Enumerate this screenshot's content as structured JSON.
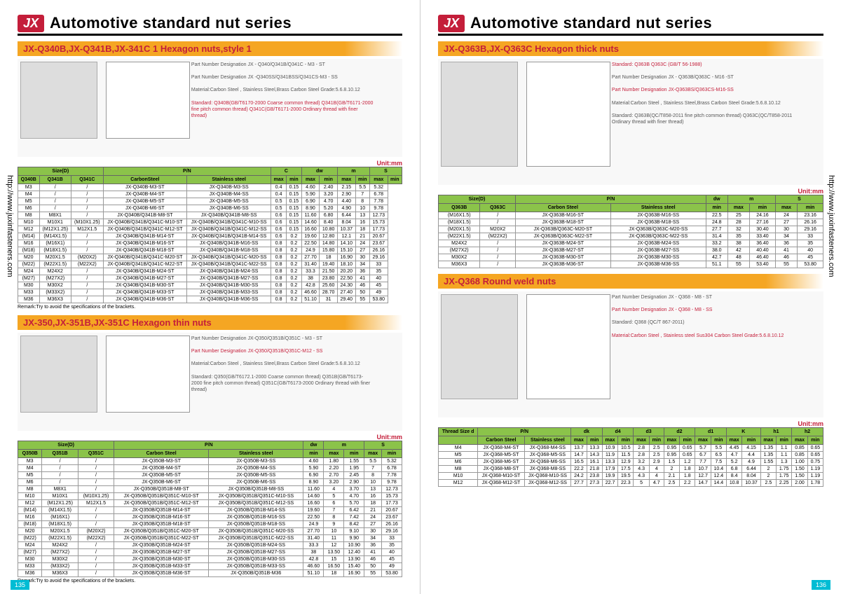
{
  "vertical_url": "http://www.juxinfasteners.com",
  "page_num_left": "135",
  "page_num_right": "136",
  "header_title": "Automotive standard nut series",
  "logo_text": "JX",
  "unit_label": "Unit:mm",
  "left": {
    "sec1": {
      "title": "JX-Q340B,JX-Q341B,JX-341C 1  Hexagon nuts,style 1",
      "pnd1": "Part Number Designation\nJX - Q340/Q341B/Q341C - M3 - ST",
      "pnd2": "Part Number Designation\nJX -Q340SS/Q341BSS/Q341CS-M3 - SS",
      "material": "Material:Carbon Steel , Stainless Steel,Brass\nCarbon Steel Grade:5.6.8.10.12",
      "standard": "Standard:\nQ340B(GB/T6170-2000 Coarse common thread)\nQ341B(GB/T6171-2000 fine pitch common thread)\nQ341C(GB/T6171-2000 Ordinary thread with finer thread)",
      "remark": "Remark:Try to avoid the specifications of the brackets.",
      "cols": [
        "Q340B",
        "Q341B",
        "Q341C",
        "CarbonSteel",
        "Stainless steel",
        "max",
        "min",
        "max",
        "min",
        "max",
        "min",
        "max",
        "min"
      ],
      "head_groups": [
        "Size(D)",
        "P/N",
        "C",
        "dw",
        "m",
        "S"
      ],
      "rows": [
        [
          "M3",
          "/",
          "/",
          "JX-Q340B-M3-ST",
          "JX-Q340B-M3-SS",
          "0.4",
          "0.15",
          "4.60",
          "2.40",
          "2.15",
          "5.5",
          "5.32"
        ],
        [
          "M4",
          "/",
          "/",
          "JX-Q340B-M4-ST",
          "JX-Q340B-M4-SS",
          "0.4",
          "0.15",
          "5.90",
          "3.20",
          "2.90",
          "7",
          "6.78"
        ],
        [
          "M5",
          "/",
          "/",
          "JX-Q340B-M5-ST",
          "JX-Q340B-M5-SS",
          "0.5",
          "0.15",
          "6.90",
          "4.70",
          "4.40",
          "8",
          "7.78"
        ],
        [
          "M6",
          "/",
          "/",
          "JX-Q340B-M6-ST",
          "JX-Q340B-M6-SS",
          "0.5",
          "0.15",
          "8.90",
          "5.20",
          "4.90",
          "10",
          "9.78"
        ],
        [
          "M8",
          "M8X1",
          "/",
          "JX-Q340B/Q341B-M8-ST",
          "JX-Q340B/Q341B-M8-SS",
          "0.6",
          "0.15",
          "11.60",
          "6.80",
          "6.44",
          "13",
          "12.73"
        ],
        [
          "M10",
          "M10X1",
          "(M10X1.25)",
          "JX-Q340B/Q341B/Q341C-M10-ST",
          "JX-Q340B/Q341B/Q341C-M10-SS",
          "0.6",
          "0.15",
          "14.60",
          "8.40",
          "8.04",
          "16",
          "15.73"
        ],
        [
          "M12",
          "(M12X1.25)",
          "M12X1.5",
          "JX-Q340B/Q341B/Q341C-M12-ST",
          "JX-Q340B/Q341B/Q341C-M12-SS",
          "0.6",
          "0.15",
          "16.60",
          "10.80",
          "10.37",
          "18",
          "17.73"
        ],
        [
          "(M14)",
          "(M14X1.5)",
          "/",
          "JX-Q340B/Q341B-M14-ST",
          "JX-Q340B/Q341B/Q341B-M14-SS",
          "0.6",
          "0.2",
          "19.60",
          "12.80",
          "12.1",
          "21",
          "20.67"
        ],
        [
          "M16",
          "(M16X1)",
          "/",
          "JX-Q340B/Q341B-M16-ST",
          "JX-Q340B/Q341B-M16-SS",
          "0.8",
          "0.2",
          "22.50",
          "14.80",
          "14.10",
          "24",
          "23.67"
        ],
        [
          "(M18)",
          "(M18X1.5)",
          "/",
          "JX-Q340B/Q341B-M18-ST",
          "JX-Q340B/Q341B-M18-SS",
          "0.8",
          "0.2",
          "24.9",
          "15.80",
          "15.10",
          "27",
          "26.16"
        ],
        [
          "M20",
          "M20X1.5",
          "(M20X2)",
          "JX-Q340B/Q341B/Q341C-M20-ST",
          "JX-Q340B/Q341B/Q341C-M20-SS",
          "0.8",
          "0.2",
          "27.70",
          "18",
          "16.90",
          "30",
          "29.16"
        ],
        [
          "(M22)",
          "(M22X1.5)",
          "(M22X2)",
          "JX-Q340B/Q341B/Q341C-M22-ST",
          "JX-Q340B/Q341B/Q341C-M22-SS",
          "0.8",
          "0.2",
          "31.40",
          "19.40",
          "18.10",
          "34",
          "33"
        ],
        [
          "M24",
          "M24X2",
          "/",
          "JX-Q340B/Q341B-M24-ST",
          "JX-Q340B/Q341B-M24-SS",
          "0.8",
          "0.2",
          "33.3",
          "21.50",
          "20.20",
          "36",
          "35"
        ],
        [
          "(M27)",
          "(M27X2)",
          "/",
          "JX-Q340B/Q341B-M27-ST",
          "JX-Q340B/Q341B-M27-SS",
          "0.8",
          "0.2",
          "38",
          "23.80",
          "22.50",
          "41",
          "40"
        ],
        [
          "M30",
          "M30X2",
          "/",
          "JX-Q340B/Q341B-M30-ST",
          "JX-Q340B/Q341B-M30-SS",
          "0.8",
          "0.2",
          "42.8",
          "25.60",
          "24.30",
          "46",
          "45"
        ],
        [
          "M33",
          "(M33X2)",
          "/",
          "JX-Q340B/Q341B-M33-ST",
          "JX-Q340B/Q341B-M33-SS",
          "0.8",
          "0.2",
          "46.60",
          "28.70",
          "27.40",
          "50",
          "49"
        ],
        [
          "M36",
          "M36X3",
          "/",
          "JX-Q340B/Q341B-M36-ST",
          "JX-Q340B/Q341B-M36-SS",
          "0.8",
          "0.2",
          "51.10",
          "31",
          "29.40",
          "55",
          "53.80"
        ]
      ]
    },
    "sec2": {
      "title": "JX-350,JX-351B,JX-351C  Hexagon thin nuts",
      "pnd1": "Part Number Designation\nJX-Q350/Q351B/Q351C - M3 - ST",
      "pnd2": "Part Number Designation\nJX-Q350/Q351B/Q351C-M12 - SS",
      "material": "Material:Carbon Steel , Stainless Steel,Brass\nCarbon Steel Grade:5.6.8.10.12",
      "standard": "Standard:\nQ350(GB/T6172.1-2000 Coarse common thread)\nQ351B(GB/T6173-2000 fine pitch common thread)\nQ351C(GB/T6173-2000 Ordinary thread with finer thread)",
      "remark": "Remark:Try to avoid the specifications of the brackets.",
      "head_groups": [
        "Size(D)",
        "P/N",
        "dw",
        "m",
        "S"
      ],
      "cols": [
        "Q350B",
        "Q351B",
        "Q351C",
        "Carbon Steel",
        "Stainless steel",
        "min",
        "max",
        "min",
        "max",
        "min"
      ],
      "rows": [
        [
          "M3",
          "/",
          "/",
          "JX-Q350B-M3-ST",
          "JX-Q350B-M3-SS",
          "4.60",
          "1.80",
          "1.55",
          "5.5",
          "5.32"
        ],
        [
          "M4",
          "/",
          "/",
          "JX-Q350B-M4-ST",
          "JX-Q350B-M4-SS",
          "5.90",
          "2.20",
          "1.95",
          "7",
          "6.78"
        ],
        [
          "M5",
          "/",
          "/",
          "JX-Q350B-M5-ST",
          "JX-Q350B-M5-SS",
          "6.90",
          "2.70",
          "2.45",
          "8",
          "7.78"
        ],
        [
          "M6",
          "/",
          "/",
          "JX-Q350B-M6-ST",
          "JX-Q350B-M6-SS",
          "8.90",
          "3.20",
          "2.90",
          "10",
          "9.78"
        ],
        [
          "M8",
          "M8X1",
          "/",
          "JX-Q350B/Q351B-M8-ST",
          "JX-Q350B/Q351B-M8-SS",
          "11.60",
          "4",
          "3.70",
          "13",
          "12.73"
        ],
        [
          "M10",
          "M10X1",
          "(M10X1.25)",
          "JX-Q350B/Q351B/Q351C-M10-ST",
          "JX-Q350B/Q351B/Q351C-M10-SS",
          "14.60",
          "5",
          "4.70",
          "16",
          "15.73"
        ],
        [
          "M12",
          "(M12X1.25)",
          "M12X1.5",
          "JX-Q350B/Q351B/Q351C-M12-ST",
          "JX-Q350B/Q351B/Q351C-M12-SS",
          "16.60",
          "6",
          "5.70",
          "18",
          "17.73"
        ],
        [
          "(M14)",
          "(M14X1.5)",
          "/",
          "JX-Q350B/Q351B-M14-ST",
          "JX-Q350B/Q351B-M14-SS",
          "19.60",
          "7",
          "6.42",
          "21",
          "20.67"
        ],
        [
          "M16",
          "(M16X1)",
          "/",
          "JX-Q350B/Q351B-M16-ST",
          "JX-Q350B/Q351B-M16-SS",
          "22.50",
          "8",
          "7.42",
          "24",
          "23.67"
        ],
        [
          "(M18)",
          "(M18X1.5)",
          "/",
          "JX-Q350B/Q351B-M18-ST",
          "JX-Q350B/Q351B-M18-SS",
          "24.9",
          "9",
          "8.42",
          "27",
          "26.16"
        ],
        [
          "M20",
          "M20X1.5",
          "(M20X2)",
          "JX-Q350B/Q351B/Q351C-M20-ST",
          "JX-Q350B/Q351B/Q351C-M20-SS",
          "27.70",
          "10",
          "9.10",
          "30",
          "29.16"
        ],
        [
          "(M22)",
          "(M22X1.5)",
          "(M22X2)",
          "JX-Q350B/Q351B/Q351C-M22-ST",
          "JX-Q350B/Q351B/Q351C-M22-SS",
          "31.40",
          "11",
          "9.90",
          "34",
          "33"
        ],
        [
          "M24",
          "M24X2",
          "/",
          "JX-Q350B/Q351B-M24-ST",
          "JX-Q350B/Q351B-M24-SS",
          "33.3",
          "12",
          "10.90",
          "36",
          "35"
        ],
        [
          "(M27)",
          "(M27X2)",
          "/",
          "JX-Q350B/Q351B-M27-ST",
          "JX-Q350B/Q351B-M27-SS",
          "38",
          "13.50",
          "12.40",
          "41",
          "40"
        ],
        [
          "M30",
          "M30X2",
          "/",
          "JX-Q350B/Q351B-M30-ST",
          "JX-Q350B/Q351B-M30-SS",
          "42.8",
          "15",
          "13.90",
          "46",
          "45"
        ],
        [
          "M33",
          "(M33X2)",
          "/",
          "JX-Q350B/Q351B-M33-ST",
          "JX-Q350B/Q351B-M33-SS",
          "46.60",
          "16.50",
          "15.40",
          "50",
          "49"
        ],
        [
          "M36",
          "M36X3",
          "/",
          "JX-Q350B/Q351B-M36-ST",
          "JX-Q350B/Q351B-M36",
          "51.10",
          "18",
          "16.90",
          "55",
          "53.80"
        ]
      ]
    }
  },
  "right": {
    "sec1": {
      "title": "JX-Q363B,JX-Q363C  Hexagon thick nuts",
      "standard_top": "Standard: Q363B  Q363C\n(GB/T 56-1988)",
      "pnd1": "Part Number Designation\nJX - Q363B/Q363C - M16 -ST",
      "pnd2": "Part Number Designation\nJX-Q363BS/Q363CS-M16-SS",
      "material": "Material:Carbon Steel , Stainless Steel,Brass\nCarbon Steel Grade:5.6.8.10.12",
      "standard": "Standard:\nQ363B(QC/T858-2011 fine pitch common thread)\nQ363C(QC/T858-2011 Ordinary thread with finer thread)",
      "head_groups": [
        "Size(D)",
        "P/N",
        "dw",
        "m",
        "S"
      ],
      "cols": [
        "Q363B",
        "Q363C",
        "Carbon Steel",
        "Stainless steel",
        "min",
        "max",
        "min",
        "max",
        "min"
      ],
      "rows": [
        [
          "(M16X1.5)",
          "/",
          "JX-Q363B-M16-ST",
          "JX-Q363B-M16-SS",
          "22.5",
          "25",
          "24.16",
          "24",
          "23.16"
        ],
        [
          "(M18X1.5)",
          "/",
          "JX-Q363B-M18-ST",
          "JX-Q363B-M18-SS",
          "24.8",
          "28",
          "27.16",
          "27",
          "26.16"
        ],
        [
          "(M20X1.5)",
          "M20X2",
          "JX-Q363B/Q363C-M20-ST",
          "JX-Q363B/Q363C-M20-SS",
          "27.7",
          "32",
          "30.40",
          "30",
          "29.16"
        ],
        [
          "(M22X1.5)",
          "(M22X2)",
          "JX-Q363B/Q363C-M22-ST",
          "JX-Q363B/Q363C-M22-SS",
          "31.4",
          "35",
          "33.40",
          "34",
          "33"
        ],
        [
          "M24X2",
          "/",
          "JX-Q363B-M24-ST",
          "JX-Q363B-M24-SS",
          "33.2",
          "38",
          "36.40",
          "36",
          "35"
        ],
        [
          "(M27X2)",
          "/",
          "JX-Q363B-M27-ST",
          "JX-Q363B-M27-SS",
          "38.0",
          "42",
          "40.40",
          "41",
          "40"
        ],
        [
          "M30X2",
          "/",
          "JX-Q363B-M30-ST",
          "JX-Q363B-M30-SS",
          "42.7",
          "48",
          "46.40",
          "46",
          "45"
        ],
        [
          "M36X3",
          "/",
          "JX-Q363B-M36-ST",
          "JX-Q363B-M36-SS",
          "51.1",
          "55",
          "53.40",
          "55",
          "53.80"
        ]
      ]
    },
    "sec2": {
      "title": "JX-Q368  Round weld nuts",
      "pnd1": "Part Number Designation\nJX - Q368 - M8 - ST",
      "pnd2": "Part Number Designation\nJX - Q368 - M8 - SS",
      "material": "Material:Carbon Steel , Stainless steel Sus304\nCarbon Steel Grade:5.6.8.10.12",
      "standard": "Standard: Q368\n(QC/T 867-2011)",
      "head_groups": [
        "Thread Size d",
        "P/N",
        "dk",
        "d4",
        "d3",
        "d2",
        "d1",
        "K",
        "h1",
        "h2"
      ],
      "cols": [
        "",
        "Carbon Steel",
        "Stainless steel",
        "max",
        "min",
        "max",
        "min",
        "max",
        "min",
        "max",
        "min",
        "max",
        "min",
        "max",
        "min",
        "max",
        "min",
        "max",
        "min"
      ],
      "rows": [
        [
          "M4",
          "JX-Q368-M4-ST",
          "JX-Q368-M4-SS",
          "13.7",
          "13.3",
          "10.9",
          "10.5",
          "2.8",
          "2.5",
          "0.95",
          "0.65",
          "5.7",
          "5.5",
          "4.45",
          "4.15",
          "1.35",
          "1.1",
          "0.85",
          "0.65"
        ],
        [
          "M5",
          "JX-Q368-M5-ST",
          "JX-Q368-M5-SS",
          "14.7",
          "14.3",
          "11.9",
          "11.5",
          "2.8",
          "2.5",
          "0.95",
          "0.65",
          "6.7",
          "6.5",
          "4.7",
          "4.4",
          "1.35",
          "1.1",
          "0.85",
          "0.65"
        ],
        [
          "M6",
          "JX-Q368-M6-ST",
          "JX-Q368-M6-SS",
          "16.5",
          "16.1",
          "13.3",
          "12.9",
          "3.2",
          "2.9",
          "1.5",
          "1.2",
          "7.7",
          "7.5",
          "5.2",
          "4.9",
          "1.55",
          "1.3",
          "1.00",
          "0.75"
        ],
        [
          "M8",
          "JX-Q368-M8-ST",
          "JX-Q368-M8-SS",
          "22.2",
          "21.8",
          "17.9",
          "17.5",
          "4.3",
          "4",
          "2",
          "1.8",
          "10.7",
          "10.4",
          "6.8",
          "6.44",
          "2",
          "1.75",
          "1.50",
          "1.19"
        ],
        [
          "M10",
          "JX-Q368-M10-ST",
          "JX-Q368-M10-SS",
          "24.2",
          "23.8",
          "19.9",
          "19.5",
          "4.3",
          "4",
          "2.1",
          "1.8",
          "12.7",
          "12.4",
          "8.4",
          "8.04",
          "2",
          "1.75",
          "1.50",
          "1.19"
        ],
        [
          "M12",
          "JX-Q368-M12-ST",
          "JX-Q368-M12-SS",
          "27.7",
          "27.3",
          "22.7",
          "22.3",
          "5",
          "4.7",
          "2.5",
          "2.2",
          "14.7",
          "14.4",
          "10.8",
          "10.37",
          "2.5",
          "2.25",
          "2.00",
          "1.78"
        ]
      ]
    }
  }
}
